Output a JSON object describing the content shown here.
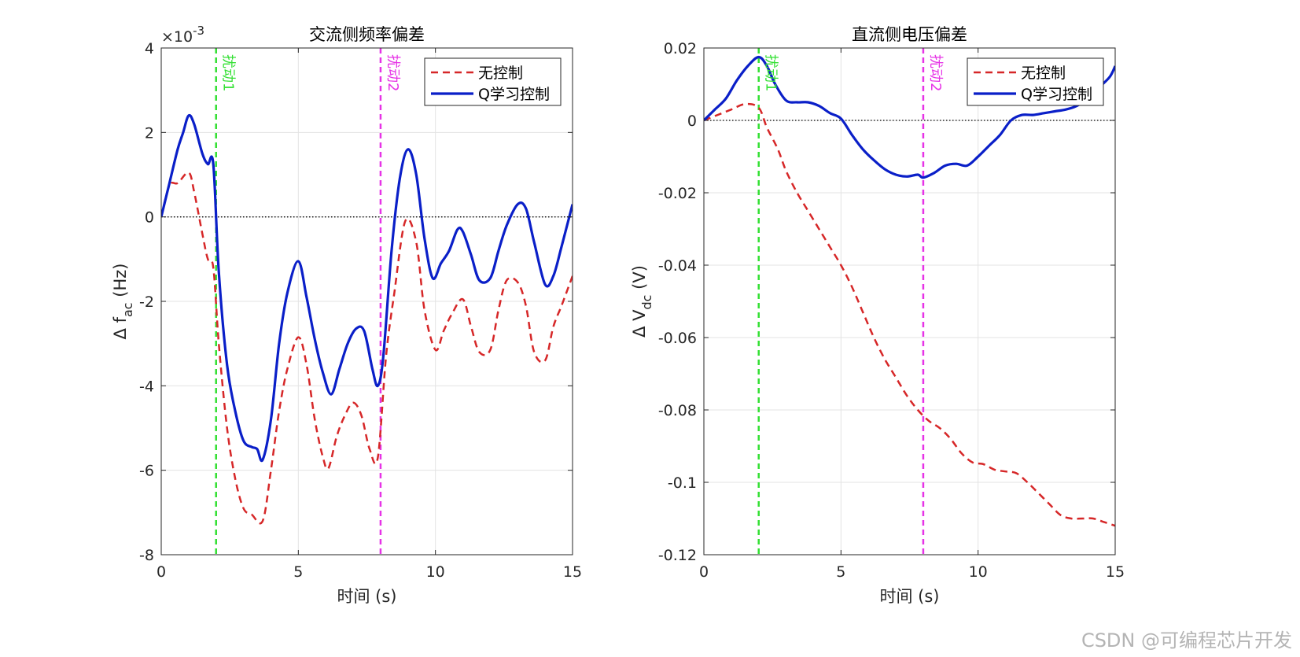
{
  "chart_data": [
    {
      "type": "line",
      "title": "交流侧频率偏差",
      "xlabel": "时间 (s)",
      "ylabel_main": "Δ f",
      "ylabel_sub": "ac",
      "ylabel_unit": " (Hz)",
      "exponent_base": "×10",
      "exponent_power": "-3",
      "xlim": [
        0,
        15
      ],
      "ylim": [
        -8,
        4
      ],
      "xticks": [
        0,
        5,
        10,
        15
      ],
      "yticks": [
        -8,
        -6,
        -4,
        -2,
        0,
        2,
        4
      ],
      "xtick_labels": [
        "0",
        "5",
        "10",
        "15"
      ],
      "ytick_labels": [
        "-8",
        "-6",
        "-4",
        "-2",
        "0",
        "2",
        "4"
      ],
      "grid": true,
      "legend_position": "top-right",
      "series": [
        {
          "name": "无控制",
          "color": "#d62728",
          "dash": "dashed",
          "x": [
            0,
            0.3,
            0.6,
            1.0,
            1.2,
            1.5,
            1.7,
            1.9,
            2.1,
            2.4,
            2.7,
            3.0,
            3.3,
            3.7,
            4.0,
            4.3,
            4.6,
            5.0,
            5.3,
            5.6,
            5.9,
            6.1,
            6.4,
            6.7,
            7.0,
            7.3,
            7.6,
            7.9,
            8.2,
            8.5,
            8.9,
            9.3,
            9.6,
            10.0,
            10.3,
            10.6,
            11.0,
            11.3,
            11.6,
            12.0,
            12.3,
            12.6,
            13.0,
            13.3,
            13.6,
            14.0,
            14.3,
            14.6,
            15.0
          ],
          "values": [
            0,
            0.75,
            0.8,
            1.05,
            0.6,
            -0.4,
            -1.0,
            -1.2,
            -3.0,
            -5.0,
            -6.2,
            -6.9,
            -7.05,
            -7.2,
            -6.0,
            -4.6,
            -3.6,
            -2.85,
            -3.5,
            -4.8,
            -5.7,
            -5.95,
            -5.2,
            -4.7,
            -4.4,
            -4.7,
            -5.5,
            -5.7,
            -3.3,
            -1.8,
            -0.1,
            -0.6,
            -2.2,
            -3.15,
            -2.7,
            -2.3,
            -1.95,
            -2.6,
            -3.2,
            -3.15,
            -2.2,
            -1.5,
            -1.55,
            -2.1,
            -3.2,
            -3.4,
            -2.6,
            -2.1,
            -1.4
          ]
        },
        {
          "name": "Q学习控制",
          "color": "#0a1fc8",
          "dash": "solid",
          "x": [
            0,
            0.3,
            0.6,
            0.8,
            1.0,
            1.2,
            1.5,
            1.7,
            1.9,
            2.1,
            2.4,
            2.7,
            3.0,
            3.3,
            3.5,
            3.7,
            4.0,
            4.3,
            4.6,
            5.0,
            5.3,
            5.6,
            5.9,
            6.2,
            6.5,
            6.8,
            7.1,
            7.4,
            7.7,
            7.9,
            8.1,
            8.4,
            8.7,
            9.0,
            9.3,
            9.6,
            9.9,
            10.2,
            10.5,
            10.8,
            11.0,
            11.3,
            11.6,
            12.0,
            12.3,
            12.6,
            13.0,
            13.3,
            13.6,
            14.0,
            14.3,
            14.6,
            15.0
          ],
          "values": [
            0,
            0.8,
            1.6,
            2.0,
            2.4,
            2.2,
            1.5,
            1.25,
            1.25,
            -1.3,
            -3.5,
            -4.6,
            -5.3,
            -5.45,
            -5.5,
            -5.75,
            -4.8,
            -3.0,
            -1.8,
            -1.05,
            -1.9,
            -2.9,
            -3.7,
            -4.2,
            -3.6,
            -3.0,
            -2.65,
            -2.7,
            -3.6,
            -4.0,
            -3.3,
            -0.8,
            0.9,
            1.6,
            1.0,
            -0.5,
            -1.45,
            -1.1,
            -0.8,
            -0.3,
            -0.35,
            -0.9,
            -1.5,
            -1.45,
            -0.8,
            -0.2,
            0.3,
            0.2,
            -0.6,
            -1.6,
            -1.4,
            -0.7,
            0.3
          ]
        }
      ],
      "vlines": [
        {
          "x": 2,
          "label": "扰动1",
          "color": "#33e033"
        },
        {
          "x": 8,
          "label": "扰动2",
          "color": "#e633e6"
        }
      ]
    },
    {
      "type": "line",
      "title": "直流侧电压偏差",
      "xlabel": "时间 (s)",
      "ylabel_main": "Δ V",
      "ylabel_sub": "dc",
      "ylabel_unit": " (V)",
      "xlim": [
        0,
        15
      ],
      "ylim": [
        -0.12,
        0.02
      ],
      "xticks": [
        0,
        5,
        10,
        15
      ],
      "yticks": [
        -0.12,
        -0.1,
        -0.08,
        -0.06,
        -0.04,
        -0.02,
        0,
        0.02
      ],
      "xtick_labels": [
        "0",
        "5",
        "10",
        "15"
      ],
      "ytick_labels": [
        "-0.12",
        "-0.1",
        "-0.08",
        "-0.06",
        "-0.04",
        "-0.02",
        "0",
        "0.02"
      ],
      "grid": true,
      "legend_position": "top-right",
      "series": [
        {
          "name": "无控制",
          "color": "#d62728",
          "dash": "dashed",
          "x": [
            0,
            0.5,
            1.0,
            1.5,
            2.0,
            2.3,
            2.7,
            3.0,
            3.4,
            3.8,
            4.2,
            4.6,
            5.0,
            5.4,
            5.8,
            6.2,
            6.6,
            7.0,
            7.4,
            7.8,
            8.2,
            8.6,
            9.0,
            9.4,
            9.8,
            10.2,
            10.6,
            11.0,
            11.4,
            11.8,
            12.2,
            12.6,
            13.0,
            13.4,
            13.8,
            14.2,
            14.6,
            15.0
          ],
          "values": [
            0,
            0.0015,
            0.003,
            0.0045,
            0.0035,
            -0.002,
            -0.008,
            -0.014,
            -0.02,
            -0.025,
            -0.03,
            -0.035,
            -0.04,
            -0.046,
            -0.053,
            -0.06,
            -0.066,
            -0.071,
            -0.076,
            -0.08,
            -0.083,
            -0.085,
            -0.088,
            -0.092,
            -0.0945,
            -0.095,
            -0.0965,
            -0.097,
            -0.0975,
            -0.1,
            -0.103,
            -0.106,
            -0.109,
            -0.11,
            -0.11,
            -0.11,
            -0.111,
            -0.112
          ]
        },
        {
          "name": "Q学习控制",
          "color": "#0a1fc8",
          "dash": "solid",
          "x": [
            0,
            0.4,
            0.8,
            1.2,
            1.6,
            2.0,
            2.3,
            2.6,
            3.0,
            3.4,
            3.8,
            4.2,
            4.6,
            5.0,
            5.4,
            5.8,
            6.2,
            6.6,
            7.0,
            7.4,
            7.8,
            8.0,
            8.4,
            8.8,
            9.2,
            9.6,
            10.0,
            10.4,
            10.8,
            11.2,
            11.6,
            12.0,
            12.4,
            12.8,
            13.2,
            13.6,
            14.0,
            14.4,
            14.8,
            15.0
          ],
          "values": [
            0,
            0.003,
            0.006,
            0.011,
            0.015,
            0.0175,
            0.015,
            0.01,
            0.0055,
            0.005,
            0.005,
            0.004,
            0.002,
            0.0005,
            -0.004,
            -0.008,
            -0.011,
            -0.0135,
            -0.015,
            -0.0155,
            -0.015,
            -0.0158,
            -0.0145,
            -0.0125,
            -0.012,
            -0.0125,
            -0.01,
            -0.007,
            -0.004,
            0,
            0.0015,
            0.0015,
            0.002,
            0.0025,
            0.003,
            0.004,
            0.006,
            0.009,
            0.012,
            0.015
          ]
        }
      ],
      "vlines": [
        {
          "x": 2,
          "label": "扰动1",
          "color": "#33e033"
        },
        {
          "x": 8,
          "label": "扰动2",
          "color": "#e633e6"
        }
      ]
    }
  ],
  "watermark": "CSDN @可编程芯片开发"
}
